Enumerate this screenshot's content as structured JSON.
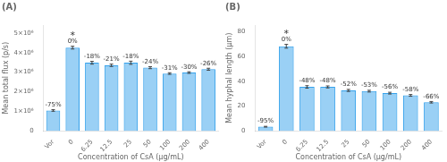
{
  "chart_data": [
    {
      "type": "bar",
      "title": "(A)",
      "categories": [
        "Vor",
        "0",
        "6.25",
        "12.5",
        "25",
        "50",
        "100",
        "200",
        "400"
      ],
      "values": [
        1050000.0,
        4250000.0,
        3480000.0,
        3350000.0,
        3480000.0,
        3230000.0,
        2930000.0,
        2980000.0,
        3150000.0
      ],
      "errors": [
        40000.0,
        70000.0,
        70000.0,
        60000.0,
        80000.0,
        50000.0,
        40000.0,
        40000.0,
        50000.0
      ],
      "annotations": [
        {
          "x": "Vor",
          "text": "-75%"
        },
        {
          "x": "0",
          "text": "0%"
        },
        {
          "x": "6.25",
          "text": "-18%"
        },
        {
          "x": "12.5",
          "text": "-21%"
        },
        {
          "x": "25",
          "text": "-18%"
        },
        {
          "x": "50",
          "text": "-24%"
        },
        {
          "x": "100",
          "text": "-31%"
        },
        {
          "x": "200",
          "text": "-30%"
        },
        {
          "x": "400",
          "text": "-26%"
        },
        {
          "x": "0",
          "text": "*"
        }
      ],
      "y_label": "Mean total flux (p/s)",
      "x_label": "Concentration of CsA (µg/mL)",
      "ylim": [
        0,
        5400000.0
      ],
      "yticks": [
        0,
        {
          "value": 1000000.0,
          "label": "1×10⁶"
        },
        {
          "value": 2000000.0,
          "label": "2×10⁶"
        },
        {
          "value": 3000000.0,
          "label": "3×10⁶"
        },
        {
          "value": 4000000.0,
          "label": "4×10⁶"
        },
        {
          "value": 5000000.0,
          "label": "5×10⁶"
        }
      ],
      "grid": false
    },
    {
      "type": "bar",
      "title": "(B)",
      "categories": [
        "Vor",
        "0",
        "6.25",
        "12.5",
        "25",
        "50",
        "100",
        "200",
        "400"
      ],
      "values": [
        3.5,
        68.0,
        35.4,
        35.4,
        32.6,
        32.0,
        30.4,
        28.6,
        23.1
      ],
      "errors": [
        0.3,
        1.5,
        1.0,
        0.8,
        0.8,
        0.7,
        0.7,
        0.7,
        0.6
      ],
      "annotations": [
        {
          "x": "Vor",
          "text": "-95%"
        },
        {
          "x": "0",
          "text": "0%"
        },
        {
          "x": "6.25",
          "text": "-48%"
        },
        {
          "x": "12.5",
          "text": "-48%"
        },
        {
          "x": "25",
          "text": "-52%"
        },
        {
          "x": "50",
          "text": "-53%"
        },
        {
          "x": "100",
          "text": "-56%"
        },
        {
          "x": "200",
          "text": "-58%"
        },
        {
          "x": "400",
          "text": "-66%"
        },
        {
          "x": "0",
          "text": "*"
        }
      ],
      "y_label": "Mean hyphal length (µm)",
      "x_label": "Concentration of CsA (µg/mL)",
      "ylim": [
        0,
        85
      ],
      "yticks": [
        0,
        20,
        40,
        60,
        80
      ],
      "grid": false
    }
  ]
}
